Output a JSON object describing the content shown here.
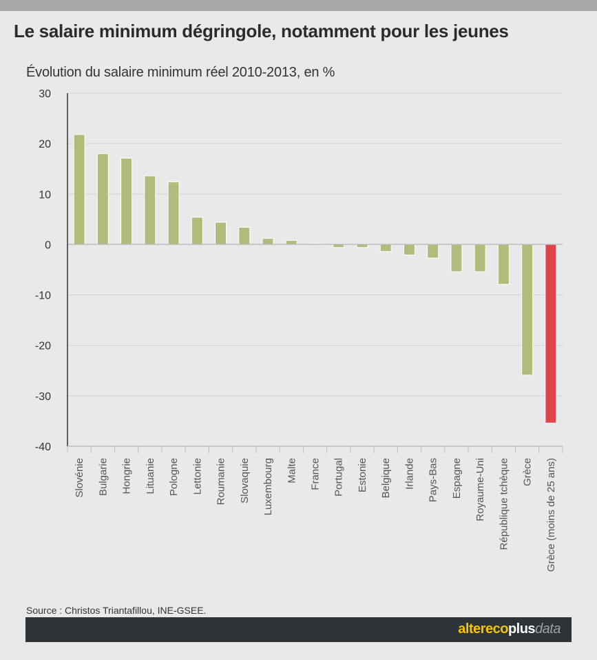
{
  "header": {
    "title": "Le salaire minimum dégringole, notamment pour les jeunes",
    "subtitle": "Évolution du salaire minimum réel 2010-2013, en %"
  },
  "footer": {
    "source": "Source : Christos Triantafillou, INE-GSEE.",
    "brand_part1": "altereco",
    "brand_part2": "plus",
    "brand_part3": "data"
  },
  "colors": {
    "bar": "#b3bb7c",
    "highlight": "#e0444b",
    "grid": "#d2d2d2",
    "axis": "#333333",
    "tick_text": "#555555"
  },
  "chart_data": {
    "type": "bar",
    "title": "",
    "xlabel": "",
    "ylabel": "",
    "ylim": [
      -40,
      30
    ],
    "yticks": [
      30,
      20,
      10,
      0,
      -10,
      -20,
      -30,
      -40
    ],
    "grid": true,
    "categories": [
      "Slovénie",
      "Bulgarie",
      "Hongrie",
      "Lituanie",
      "Pologne",
      "Lettonie",
      "Roumanie",
      "Slovaquie",
      "Luxembourg",
      "Malte",
      "France",
      "Portugal",
      "Estonie",
      "Belgique",
      "Irlande",
      "Pays-Bas",
      "Espagne",
      "Royaume-Uni",
      "République tchèque",
      "Grèce",
      "Grèce (moins de 25 ans)"
    ],
    "values": [
      21.8,
      18.0,
      17.1,
      13.6,
      12.4,
      5.4,
      4.4,
      3.4,
      1.2,
      0.8,
      0.2,
      -0.6,
      -0.6,
      -1.4,
      -2.1,
      -2.7,
      -5.4,
      -5.4,
      -7.9,
      -25.9,
      -35.4
    ],
    "highlight_index": 20
  }
}
